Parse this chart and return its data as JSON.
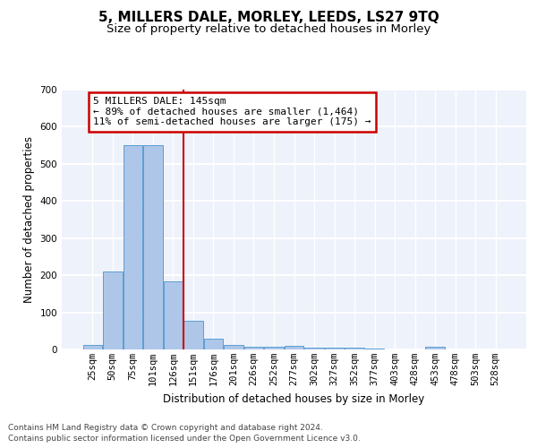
{
  "title": "5, MILLERS DALE, MORLEY, LEEDS, LS27 9TQ",
  "subtitle": "Size of property relative to detached houses in Morley",
  "xlabel": "Distribution of detached houses by size in Morley",
  "ylabel": "Number of detached properties",
  "categories": [
    "25sqm",
    "50sqm",
    "75sqm",
    "101sqm",
    "126sqm",
    "151sqm",
    "176sqm",
    "201sqm",
    "226sqm",
    "252sqm",
    "277sqm",
    "302sqm",
    "327sqm",
    "352sqm",
    "377sqm",
    "403sqm",
    "428sqm",
    "453sqm",
    "478sqm",
    "503sqm",
    "528sqm"
  ],
  "values": [
    12,
    210,
    550,
    550,
    183,
    78,
    30,
    13,
    8,
    8,
    10,
    5,
    5,
    5,
    3,
    0,
    0,
    7,
    0,
    0,
    0
  ],
  "bar_color": "#aec6e8",
  "bar_edge_color": "#5a9fd4",
  "vline_x": 4.5,
  "vline_color": "#cc0000",
  "annotation_line1": "5 MILLERS DALE: 145sqm",
  "annotation_line2": "← 89% of detached houses are smaller (1,464)",
  "annotation_line3": "11% of semi-detached houses are larger (175) →",
  "annotation_box_color": "#cc0000",
  "ylim": [
    0,
    700
  ],
  "yticks": [
    0,
    100,
    200,
    300,
    400,
    500,
    600,
    700
  ],
  "background_color": "#eef2fb",
  "grid_color": "#ffffff",
  "footer_line1": "Contains HM Land Registry data © Crown copyright and database right 2024.",
  "footer_line2": "Contains public sector information licensed under the Open Government Licence v3.0.",
  "title_fontsize": 11,
  "subtitle_fontsize": 9.5,
  "xlabel_fontsize": 8.5,
  "ylabel_fontsize": 8.5,
  "tick_fontsize": 7.5,
  "annotation_fontsize": 8,
  "footer_fontsize": 6.5
}
